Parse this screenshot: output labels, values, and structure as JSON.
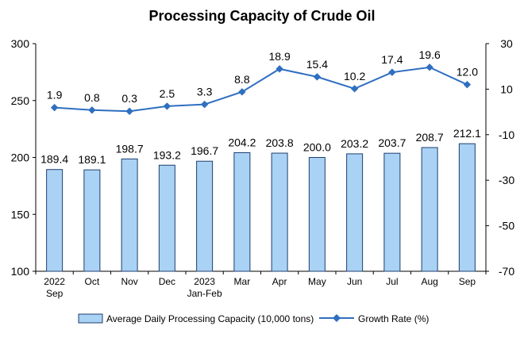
{
  "chart_data": {
    "type": "bar",
    "title": "Processing Capacity of Crude Oil",
    "categories": [
      [
        "2022",
        "Sep"
      ],
      [
        "Oct"
      ],
      [
        "Nov"
      ],
      [
        "Dec"
      ],
      [
        "2023",
        "Jan-Feb"
      ],
      [
        "Mar"
      ],
      [
        "Apr"
      ],
      [
        "May"
      ],
      [
        "Jun"
      ],
      [
        "Jul"
      ],
      [
        "Aug"
      ],
      [
        "Sep"
      ]
    ],
    "series": [
      {
        "name": "Average Daily Processing Capacity (10,000 tons)",
        "type": "bar",
        "axis": "left",
        "values": [
          189.4,
          189.1,
          198.7,
          193.2,
          196.7,
          204.2,
          203.8,
          200.0,
          203.2,
          203.7,
          208.7,
          212.1
        ],
        "labels": [
          "189.4",
          "189.1",
          "198.7",
          "193.2",
          "196.7",
          "204.2",
          "203.8",
          "200.0",
          "203.2",
          "203.7",
          "208.7",
          "212.1"
        ]
      },
      {
        "name": "Growth Rate (%)",
        "type": "line",
        "axis": "right",
        "values": [
          1.9,
          0.8,
          0.3,
          2.5,
          3.3,
          8.8,
          18.9,
          15.4,
          10.2,
          17.4,
          19.6,
          12.0
        ],
        "labels": [
          "1.9",
          "0.8",
          "0.3",
          "2.5",
          "3.3",
          "8.8",
          "18.9",
          "15.4",
          "10.2",
          "17.4",
          "19.6",
          "12.0"
        ]
      }
    ],
    "left_axis": {
      "min": 100,
      "max": 300,
      "ticks": [
        100,
        150,
        200,
        250,
        300
      ]
    },
    "right_axis": {
      "min": -70,
      "max": 30,
      "ticks": [
        -70,
        -50,
        -30,
        -10,
        10,
        30
      ]
    },
    "grid": false,
    "legend_position": "bottom",
    "colors": {
      "bar_fill": "#a9d2f5",
      "bar_stroke": "#1f3f6e",
      "line": "#2f6fc0",
      "axis": "#000000"
    }
  }
}
